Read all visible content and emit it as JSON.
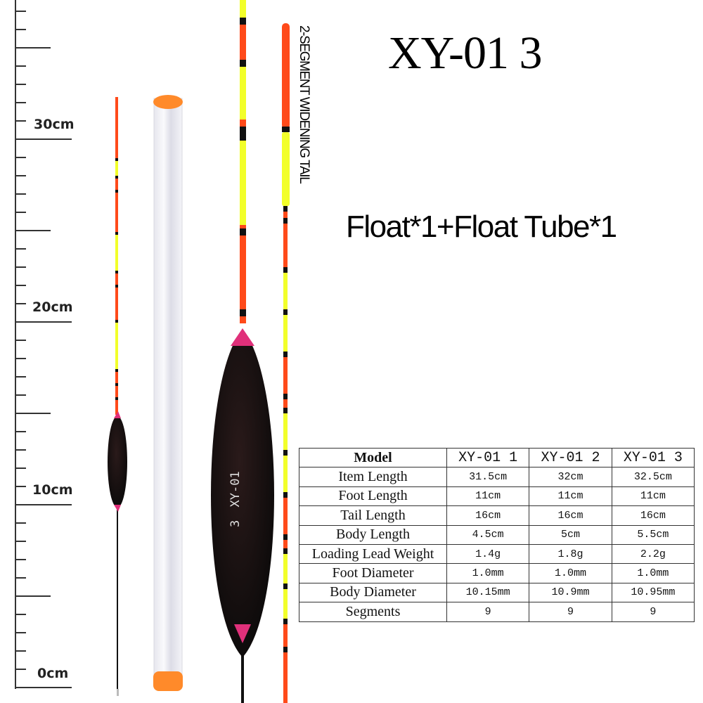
{
  "title": "XY-01 3",
  "subtitle": "Float*1+Float Tube*1",
  "tail_note": "2-SEGMENT WIDENING TAIL",
  "ruler": {
    "labels": [
      "30cm",
      "20cm",
      "10cm",
      "0cm"
    ]
  },
  "float_marking": {
    "model": "XY-01",
    "number": "3"
  },
  "colors": {
    "orange": "#ff4a1a",
    "yellow": "#f2ff2a",
    "black": "#111111",
    "pink": "#e0307a",
    "tube_cap": "#ff8a2a"
  },
  "table": {
    "header": [
      "Model",
      "XY-01 1",
      "XY-01 2",
      "XY-01 3"
    ],
    "rows": [
      [
        "Item Length",
        "31.5cm",
        "32cm",
        "32.5cm"
      ],
      [
        "Foot Length",
        "11cm",
        "11cm",
        "11cm"
      ],
      [
        "Tail Length",
        "16cm",
        "16cm",
        "16cm"
      ],
      [
        "Body Length",
        "4.5cm",
        "5cm",
        "5.5cm"
      ],
      [
        "Loading Lead Weight",
        "1.4g",
        "1.8g",
        "2.2g"
      ],
      [
        "Foot Diameter",
        "1.0mm",
        "1.0mm",
        "1.0mm"
      ],
      [
        "Body Diameter",
        "10.15mm",
        "10.9mm",
        "10.95mm"
      ],
      [
        "Segments",
        "9",
        "9",
        "9"
      ]
    ]
  }
}
